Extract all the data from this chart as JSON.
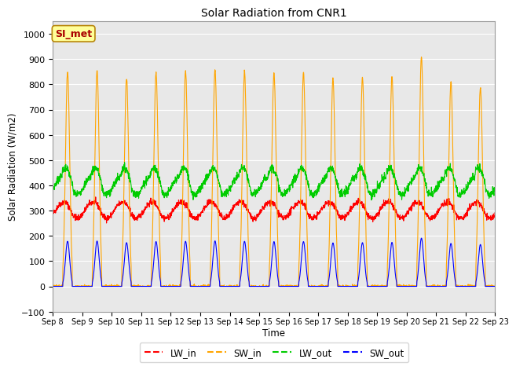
{
  "title": "Solar Radiation from CNR1",
  "xlabel": "Time",
  "ylabel": "Solar Radiation (W/m2)",
  "ylim": [
    -100,
    1050
  ],
  "yticks": [
    -100,
    0,
    100,
    200,
    300,
    400,
    500,
    600,
    700,
    800,
    900,
    1000
  ],
  "n_days": 15,
  "colors": {
    "LW_in": "#ff0000",
    "SW_in": "#ffa500",
    "LW_out": "#00cc00",
    "SW_out": "#0000ff"
  },
  "bg_color": "#e8e8e8",
  "fig_bg": "#ffffff",
  "annotation_text": "SI_met",
  "annotation_bg": "#ffff99",
  "annotation_border": "#b8860b",
  "annotation_fg": "#aa0000",
  "xtick_labels": [
    "Sep 8",
    "Sep 9",
    "Sep 10",
    "Sep 11",
    "Sep 12",
    "Sep 13",
    "Sep 14",
    "Sep 15",
    "Sep 16",
    "Sep 17",
    "Sep 18",
    "Sep 19",
    "Sep 20",
    "Sep 21",
    "Sep 22",
    "Sep 23"
  ]
}
